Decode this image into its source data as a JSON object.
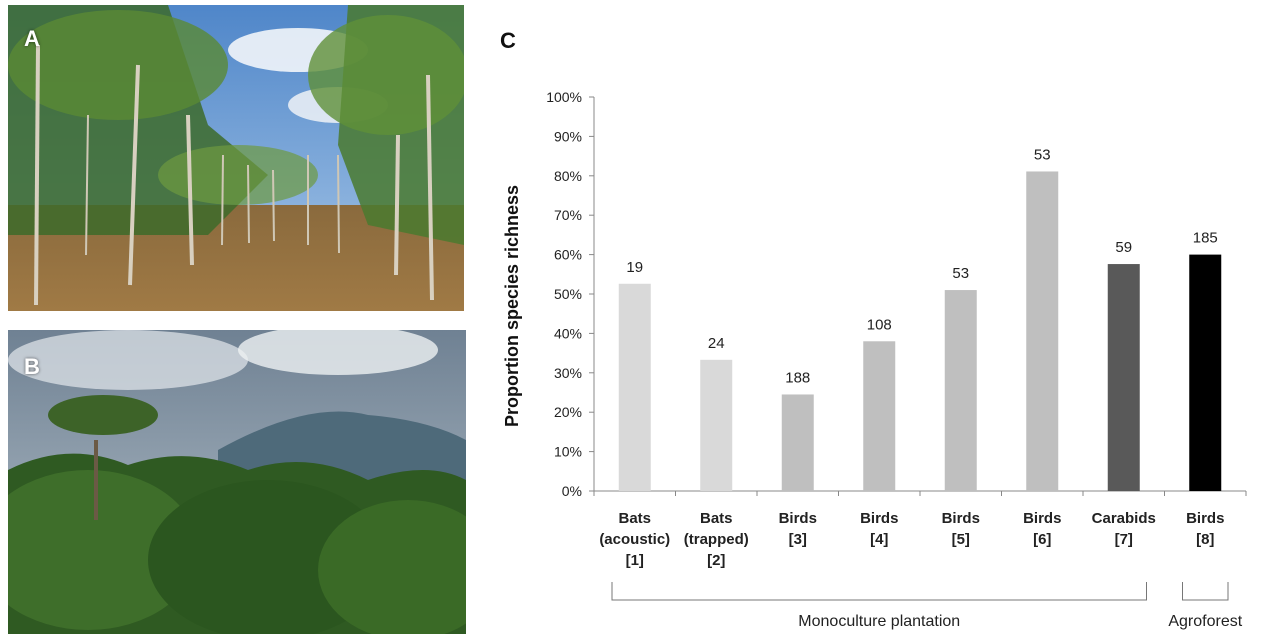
{
  "panels": {
    "a_label": "A",
    "b_label": "B",
    "c_label": "C"
  },
  "chart_data": {
    "type": "bar",
    "ylabel": "Proportion species richness",
    "ylim": [
      0,
      100
    ],
    "ytick_labels": [
      "0%",
      "10%",
      "20%",
      "30%",
      "40%",
      "50%",
      "60%",
      "70%",
      "80%",
      "90%",
      "100%"
    ],
    "categories": [
      [
        "Bats",
        "(acoustic)",
        "[1]"
      ],
      [
        "Bats",
        "(trapped)",
        "[2]"
      ],
      [
        "Birds",
        "[3]"
      ],
      [
        "Birds",
        "[4]"
      ],
      [
        "Birds",
        "[5]"
      ],
      [
        "Birds",
        "[6]"
      ],
      [
        "Carabids",
        "[7]"
      ],
      [
        "Birds",
        "[8]"
      ]
    ],
    "values": [
      52.6,
      33.3,
      24.5,
      38.0,
      51.0,
      81.1,
      57.6,
      60.0
    ],
    "data_labels": [
      "19",
      "24",
      "188",
      "108",
      "53",
      "53",
      "59",
      "185"
    ],
    "colors": [
      "#d9d9d9",
      "#d9d9d9",
      "#bfbfbf",
      "#bfbfbf",
      "#bfbfbf",
      "#bfbfbf",
      "#595959",
      "#000000"
    ],
    "groups": [
      {
        "label": "Monoculture plantation",
        "from": 0,
        "to": 6
      },
      {
        "label": "Agroforest",
        "from": 7,
        "to": 7
      }
    ]
  }
}
